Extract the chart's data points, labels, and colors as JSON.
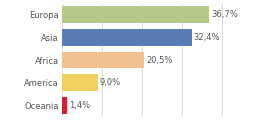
{
  "categories": [
    "Europa",
    "Asia",
    "Africa",
    "America",
    "Oceania"
  ],
  "values": [
    36.7,
    32.4,
    20.5,
    9.0,
    1.4
  ],
  "labels": [
    "36,7%",
    "32,4%",
    "20,5%",
    "9,0%",
    "1,4%"
  ],
  "bar_colors": [
    "#b5c98a",
    "#5b7db5",
    "#f0c090",
    "#f0d060",
    "#cc2233"
  ],
  "background_color": "#ffffff",
  "xlim": [
    0,
    46
  ],
  "label_fontsize": 6.0,
  "tick_fontsize": 6.0,
  "bar_height": 0.75
}
